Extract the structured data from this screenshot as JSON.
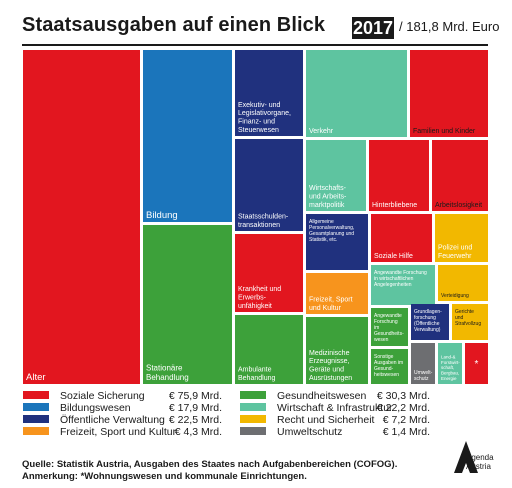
{
  "header": {
    "title": "Staatsausgaben auf einen Blick",
    "year": "2017",
    "total": "/ 181,8 Mrd. Euro"
  },
  "colors": {
    "soziale_sicherung": "#e2161f",
    "bildungswesen": "#1b75bb",
    "oeffentliche_verwaltung": "#20317e",
    "freizeit": "#f7941d",
    "gesundheitswesen": "#3da13a",
    "wirtschaft": "#5ec4a0",
    "recht": "#f2b800",
    "umweltschutz": "#6d6e71"
  },
  "chart_data": {
    "type": "treemap",
    "title": "Staatsausgaben auf einen Blick",
    "year": "2017",
    "total": "181,8 Mrd. Euro",
    "categories": [
      {
        "name": "Soziale Sicherung",
        "value": 75.9,
        "unit": "Mrd.",
        "color": "#e2161f",
        "items": [
          "Alter",
          "Familien und Kinder",
          "Hinterbliebene",
          "Arbeitslosigkeit",
          "Krankheit und Erwerbs-unfähigkeit",
          "Soziale Hilfe",
          "*"
        ]
      },
      {
        "name": "Bildungswesen",
        "value": 17.9,
        "unit": "Mrd.",
        "color": "#1b75bb",
        "items": [
          "Bildung"
        ]
      },
      {
        "name": "Öffentliche Verwaltung",
        "value": 22.5,
        "unit": "Mrd.",
        "color": "#20317e",
        "items": [
          "Exekutiv- und Legislativorgane, Finanz- und Steuerwesen",
          "Staatsschulden-transaktionen",
          "Allgemeine Personalverwaltung, Gesamtplanung und Statistik, etc.",
          "Grundlagen-forschung (Öffentliche Verwaltung)"
        ]
      },
      {
        "name": "Freizeit, Sport und Kultur",
        "value": 4.3,
        "unit": "Mrd.",
        "color": "#f7941d",
        "items": [
          "Freizeit, Sport und Kultur"
        ]
      },
      {
        "name": "Gesundheitswesen",
        "value": 30.3,
        "unit": "Mrd.",
        "color": "#3da13a",
        "items": [
          "Stationäre Behandlung",
          "Ambulante Behandlung",
          "Medizinische Erzeugnisse, Geräte und Ausrüstungen",
          "Angewandte Forschung im Gesundheits-wesen",
          "Sonstige Ausgaben im Gesund-heitswesen"
        ]
      },
      {
        "name": "Wirtschaft & Infrastruktur",
        "value": 22.2,
        "unit": "Mrd.",
        "color": "#5ec4a0",
        "items": [
          "Verkehr",
          "Wirtschafts- und Arbeits-marktpolitik",
          "Angewandte Forschung in wirtschaftlichen Angelegenheiten",
          "Land-& Forstwirt-schaft, Bergbau, Energie"
        ]
      },
      {
        "name": "Recht und Sicherheit",
        "value": 7.2,
        "unit": "Mrd.",
        "color": "#f2b800",
        "items": [
          "Polizei und Feuerwehr",
          "Verteidigung",
          "Gerichte und Strafvollzug"
        ]
      },
      {
        "name": "Umweltschutz",
        "value": 1.4,
        "unit": "Mrd.",
        "color": "#6d6e71",
        "items": [
          "Umwelt-schutz"
        ]
      }
    ]
  },
  "legend": [
    {
      "label": "Soziale Sicherung",
      "value": "€ 75,9 Mrd.",
      "color": "#e2161f"
    },
    {
      "label": "Bildungswesen",
      "value": "€ 17,9 Mrd.",
      "color": "#1b75bb"
    },
    {
      "label": "Öffentliche Verwaltung",
      "value": "€ 22,5 Mrd.",
      "color": "#20317e"
    },
    {
      "label": "Freizeit, Sport und Kultur",
      "value": "€ 4,3 Mrd.",
      "color": "#f7941d"
    },
    {
      "label": "Gesundheitswesen",
      "value": "€ 30,3 Mrd.",
      "color": "#3da13a"
    },
    {
      "label": "Wirtschaft & Infrastruktur",
      "value": "€ 22,2 Mrd.",
      "color": "#5ec4a0"
    },
    {
      "label": "Recht und Sicherheit",
      "value": "€ 7,2 Mrd.",
      "color": "#f2b800"
    },
    {
      "label": "Umweltschutz",
      "value": "€ 1,4 Mrd.",
      "color": "#6d6e71"
    }
  ],
  "footer": {
    "source": "Quelle: Statistik Austria, Ausgaben des Staates nach Aufgabenbereichen (COFOG).",
    "note": "Anmerkung: *Wohnungswesen und kommunale Einrichtungen.",
    "logo_text": "Agenda Austria"
  }
}
